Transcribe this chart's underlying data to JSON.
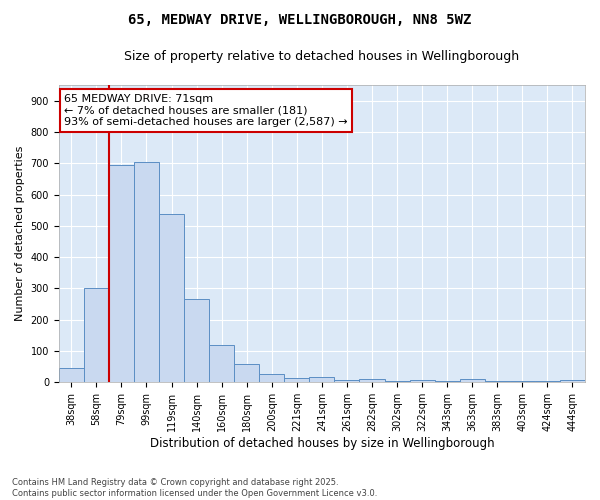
{
  "title_line1": "65, MEDWAY DRIVE, WELLINGBOROUGH, NN8 5WZ",
  "title_line2": "Size of property relative to detached houses in Wellingborough",
  "xlabel": "Distribution of detached houses by size in Wellingborough",
  "ylabel": "Number of detached properties",
  "bar_labels": [
    "38sqm",
    "58sqm",
    "79sqm",
    "99sqm",
    "119sqm",
    "140sqm",
    "160sqm",
    "180sqm",
    "200sqm",
    "221sqm",
    "241sqm",
    "261sqm",
    "282sqm",
    "302sqm",
    "322sqm",
    "343sqm",
    "363sqm",
    "383sqm",
    "403sqm",
    "424sqm",
    "444sqm"
  ],
  "bar_values": [
    47,
    300,
    693,
    705,
    537,
    265,
    120,
    60,
    26,
    15,
    18,
    8,
    10,
    5,
    8,
    5,
    10,
    5,
    3,
    3,
    8
  ],
  "bar_color": "#c9d9f0",
  "bar_edge_color": "#5b8ec4",
  "annotation_text": "65 MEDWAY DRIVE: 71sqm\n← 7% of detached houses are smaller (181)\n93% of semi-detached houses are larger (2,587) →",
  "annotation_box_color": "#ffffff",
  "annotation_box_edge": "#cc0000",
  "vline_color": "#cc0000",
  "vline_x": 1.5,
  "ylim": [
    0,
    950
  ],
  "yticks": [
    0,
    100,
    200,
    300,
    400,
    500,
    600,
    700,
    800,
    900
  ],
  "bg_color": "#dce9f7",
  "footnote": "Contains HM Land Registry data © Crown copyright and database right 2025.\nContains public sector information licensed under the Open Government Licence v3.0.",
  "title_fontsize": 10,
  "subtitle_fontsize": 9,
  "xlabel_fontsize": 8.5,
  "ylabel_fontsize": 8,
  "tick_fontsize": 7,
  "annot_fontsize": 8,
  "footnote_fontsize": 6
}
